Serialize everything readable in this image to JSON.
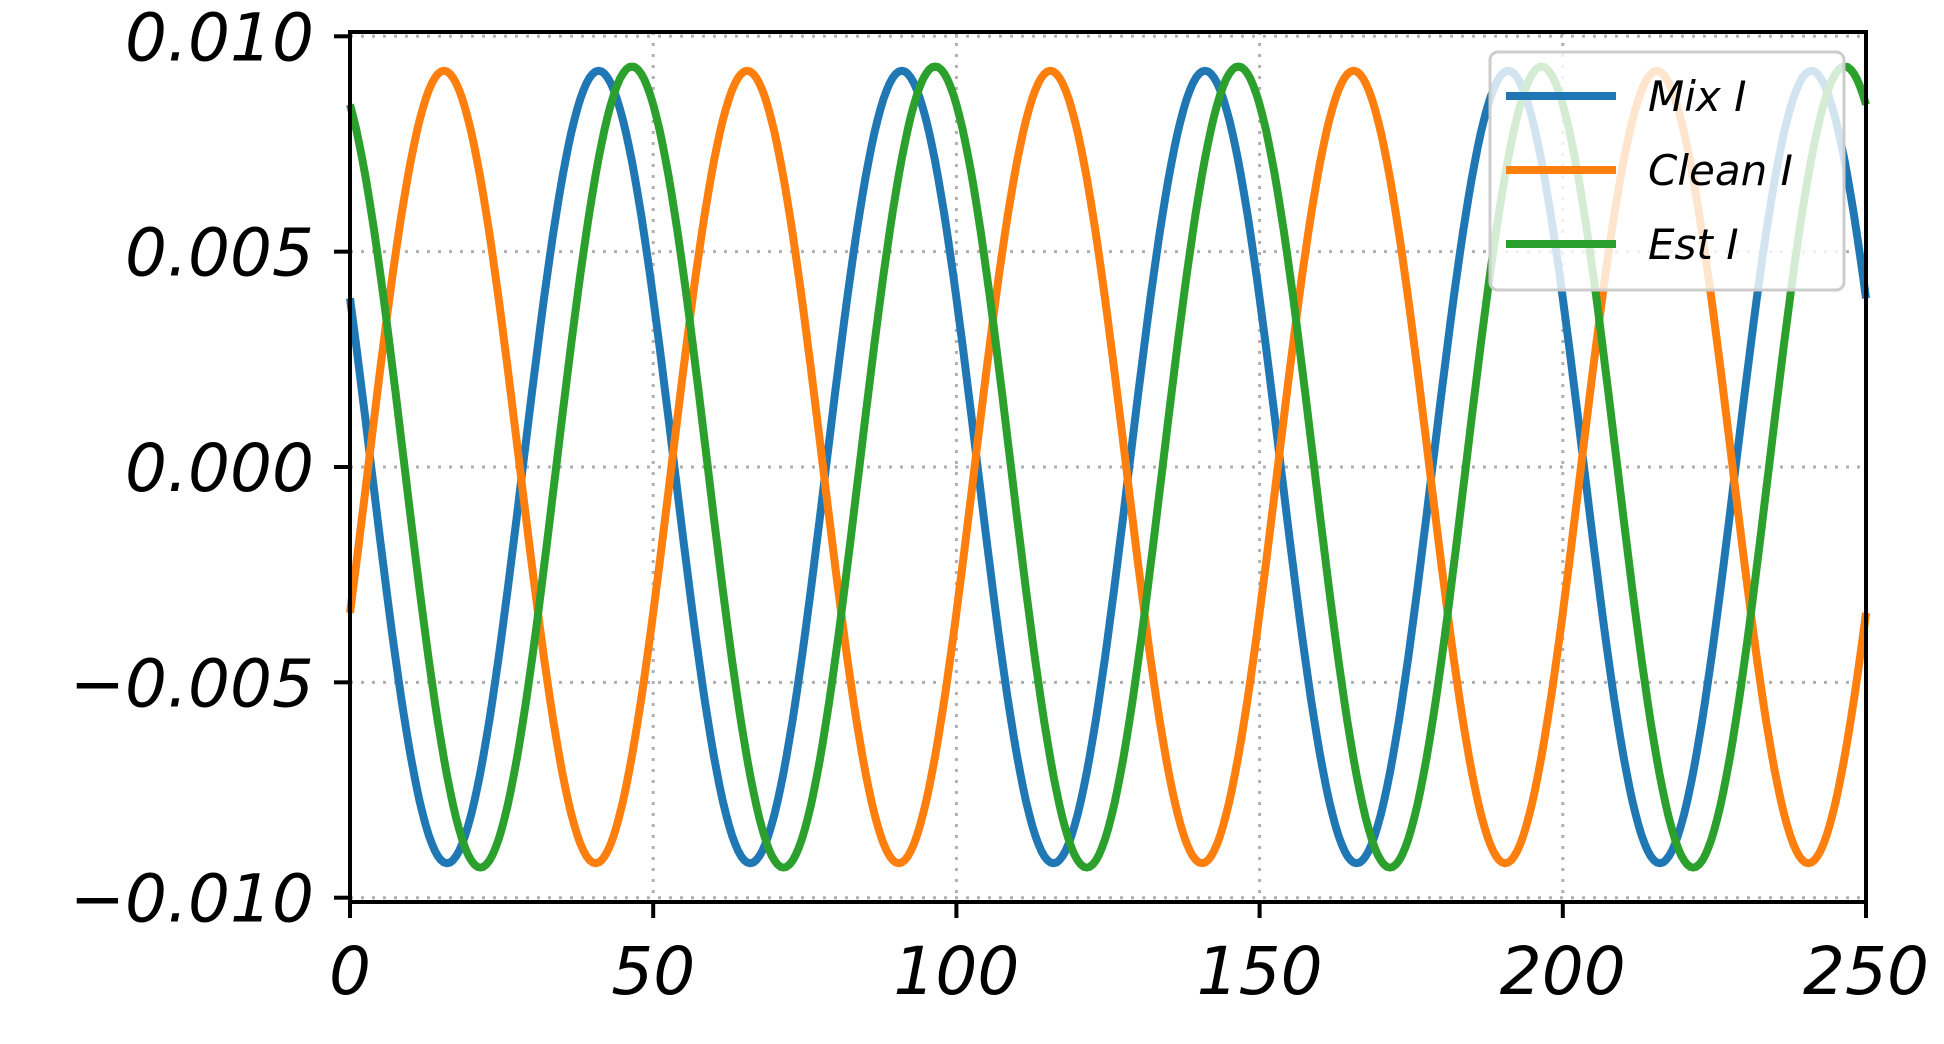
{
  "chart_data": {
    "type": "line",
    "title": "",
    "xlabel": "",
    "ylabel": "",
    "xlim": [
      0,
      250
    ],
    "ylim": [
      -0.0101,
      0.0101
    ],
    "grid": true,
    "legend_position": "top-right",
    "x_ticks": [
      0,
      50,
      100,
      150,
      200,
      250
    ],
    "x_tick_labels": [
      "0",
      "50",
      "100",
      "150",
      "200",
      "250"
    ],
    "y_ticks": [
      0.01,
      0.005,
      0.0,
      -0.005,
      -0.01
    ],
    "y_tick_labels": [
      "0.010",
      "0.005",
      "0.000",
      "−0.005",
      "−0.010"
    ],
    "series": [
      {
        "name": "Mix I",
        "color": "#1f77b4",
        "function": "sine",
        "amplitude": 0.0092,
        "period": 50,
        "peak_at": 41
      },
      {
        "name": "Clean I",
        "color": "#ff7f0e",
        "function": "sine",
        "amplitude": 0.0092,
        "period": 50,
        "peak_at": 15.5
      },
      {
        "name": "Est I",
        "color": "#2ca02c",
        "function": "sine",
        "amplitude": 0.0093,
        "period": 50,
        "peak_at": 46.5
      }
    ]
  }
}
